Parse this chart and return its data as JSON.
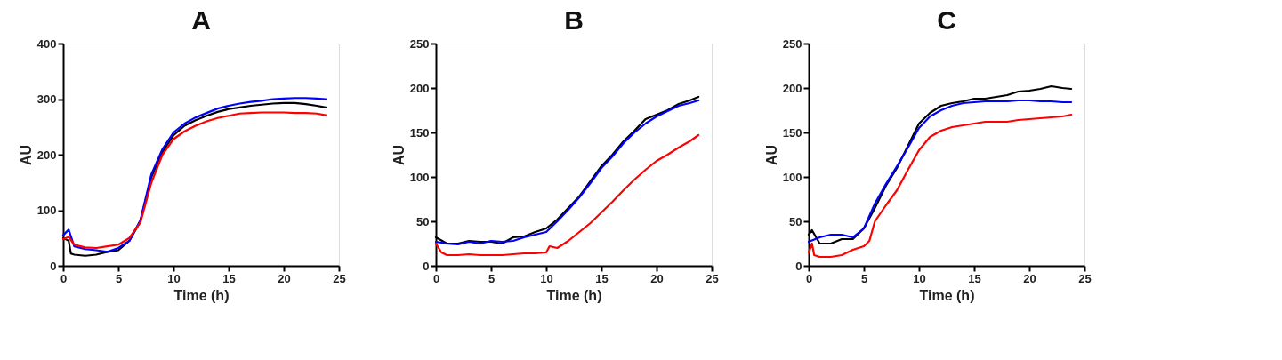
{
  "chart_data": [
    {
      "type": "line",
      "title": "A",
      "xlabel": "Time (h)",
      "ylabel": "AU",
      "xlim": [
        0,
        25
      ],
      "xticks": [
        0,
        5,
        10,
        15,
        20,
        25
      ],
      "ylim": [
        0,
        400
      ],
      "yticks": [
        0,
        100,
        200,
        300,
        400
      ],
      "series": [
        {
          "color": "#000000",
          "x": [
            0,
            0.5,
            0.7,
            1,
            2,
            3,
            4,
            5,
            6,
            7,
            8,
            9,
            10,
            11,
            12,
            13,
            14,
            15,
            16,
            17,
            18,
            19,
            20,
            21,
            22,
            23,
            23.8
          ],
          "values": [
            50,
            45,
            22,
            20,
            18,
            20,
            25,
            28,
            45,
            80,
            160,
            205,
            235,
            252,
            262,
            270,
            277,
            282,
            285,
            288,
            290,
            292,
            293,
            293,
            291,
            288,
            285
          ]
        },
        {
          "color": "#0000ff",
          "x": [
            0,
            0.5,
            1,
            2,
            3,
            4,
            5,
            6,
            7,
            8,
            9,
            10,
            11,
            12,
            13,
            14,
            15,
            16,
            17,
            18,
            19,
            20,
            21,
            22,
            23,
            23.8
          ],
          "values": [
            55,
            65,
            35,
            30,
            28,
            25,
            32,
            45,
            82,
            165,
            210,
            240,
            256,
            267,
            275,
            283,
            288,
            292,
            295,
            297,
            300,
            301,
            302,
            302,
            301,
            300
          ]
        },
        {
          "color": "#ff0000",
          "x": [
            0,
            0.5,
            1,
            2,
            3,
            4,
            5,
            6,
            7,
            8,
            9,
            10,
            11,
            12,
            13,
            14,
            15,
            16,
            17,
            18,
            19,
            20,
            21,
            22,
            23,
            23.8
          ],
          "values": [
            48,
            52,
            38,
            33,
            32,
            35,
            38,
            50,
            78,
            150,
            200,
            228,
            242,
            252,
            260,
            266,
            270,
            274,
            275,
            276,
            276,
            276,
            275,
            275,
            274,
            271
          ]
        }
      ]
    },
    {
      "type": "line",
      "title": "B",
      "xlabel": "Time (h)",
      "ylabel": "AU",
      "xlim": [
        0,
        25
      ],
      "xticks": [
        0,
        5,
        10,
        15,
        20,
        25
      ],
      "ylim": [
        0,
        250
      ],
      "yticks": [
        0,
        50,
        100,
        150,
        200,
        250
      ],
      "series": [
        {
          "color": "#000000",
          "x": [
            0,
            1,
            2,
            3,
            4,
            5,
            6,
            7,
            8,
            9,
            10,
            11,
            12,
            13,
            14,
            15,
            16,
            17,
            18,
            19,
            20,
            21,
            22,
            23,
            23.8
          ],
          "values": [
            32,
            25,
            25,
            28,
            27,
            27,
            25,
            32,
            33,
            38,
            42,
            52,
            65,
            78,
            95,
            112,
            125,
            140,
            152,
            165,
            170,
            175,
            182,
            186,
            190
          ]
        },
        {
          "color": "#0000ff",
          "x": [
            0,
            1,
            2,
            3,
            4,
            5,
            6,
            7,
            8,
            9,
            10,
            11,
            12,
            13,
            14,
            15,
            16,
            17,
            18,
            19,
            20,
            21,
            22,
            23,
            23.8
          ],
          "values": [
            27,
            25,
            24,
            27,
            25,
            28,
            27,
            28,
            32,
            35,
            38,
            50,
            63,
            77,
            93,
            110,
            123,
            138,
            150,
            160,
            168,
            174,
            180,
            183,
            186
          ]
        },
        {
          "color": "#ff0000",
          "x": [
            0,
            0.5,
            1,
            2,
            3,
            4,
            5,
            6,
            7,
            8,
            9,
            10,
            10.3,
            11,
            12,
            13,
            14,
            15,
            16,
            17,
            18,
            19,
            20,
            21,
            22,
            23,
            23.8
          ],
          "values": [
            25,
            15,
            12,
            12,
            13,
            12,
            12,
            12,
            13,
            14,
            14,
            15,
            22,
            20,
            28,
            38,
            48,
            60,
            72,
            85,
            97,
            108,
            118,
            125,
            133,
            140,
            147
          ]
        }
      ]
    },
    {
      "type": "line",
      "title": "C",
      "xlabel": "Time (h)",
      "ylabel": "AU",
      "xlim": [
        0,
        25
      ],
      "xticks": [
        0,
        5,
        10,
        15,
        20,
        25
      ],
      "ylim": [
        0,
        250
      ],
      "yticks": [
        0,
        50,
        100,
        150,
        200,
        250
      ],
      "series": [
        {
          "color": "#000000",
          "x": [
            0,
            0.3,
            1,
            2,
            3,
            4,
            5,
            6,
            7,
            8,
            9,
            10,
            11,
            12,
            13,
            14,
            15,
            16,
            17,
            18,
            19,
            20,
            21,
            22,
            23,
            23.8
          ],
          "values": [
            35,
            40,
            25,
            25,
            30,
            30,
            42,
            65,
            90,
            110,
            135,
            160,
            172,
            180,
            183,
            185,
            188,
            188,
            190,
            192,
            196,
            197,
            199,
            202,
            200,
            199
          ]
        },
        {
          "color": "#0000ff",
          "x": [
            0,
            1,
            2,
            3,
            4,
            5,
            6,
            7,
            8,
            9,
            10,
            11,
            12,
            13,
            14,
            15,
            16,
            17,
            18,
            19,
            20,
            21,
            22,
            23,
            23.8
          ],
          "values": [
            27,
            32,
            35,
            35,
            32,
            42,
            70,
            92,
            112,
            133,
            155,
            168,
            175,
            180,
            183,
            184,
            185,
            185,
            185,
            186,
            186,
            185,
            185,
            184,
            184
          ]
        },
        {
          "color": "#ff0000",
          "x": [
            0,
            0.3,
            0.5,
            1,
            2,
            3,
            4,
            5,
            5.5,
            6,
            7,
            8,
            9,
            10,
            11,
            12,
            13,
            14,
            15,
            16,
            17,
            18,
            19,
            20,
            21,
            22,
            23,
            23.8
          ],
          "values": [
            15,
            25,
            12,
            10,
            10,
            12,
            18,
            22,
            28,
            50,
            68,
            85,
            108,
            130,
            145,
            152,
            156,
            158,
            160,
            162,
            162,
            162,
            164,
            165,
            166,
            167,
            168,
            170
          ]
        }
      ]
    }
  ]
}
